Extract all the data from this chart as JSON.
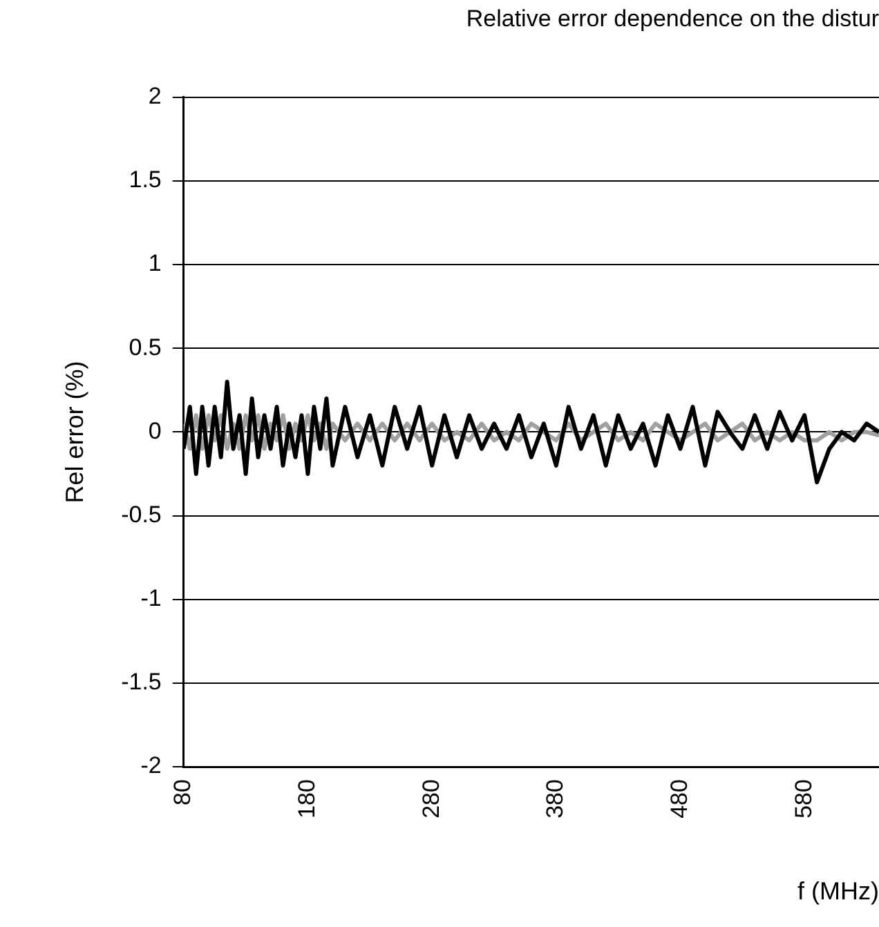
{
  "chart_data": {
    "type": "line",
    "title": "Relative error dependence on the distur",
    "xlabel": "f (MHz)",
    "ylabel": "Rel error (%)",
    "x": [
      80,
      85,
      90,
      95,
      100,
      105,
      110,
      115,
      120,
      125,
      130,
      135,
      140,
      145,
      150,
      155,
      160,
      165,
      170,
      175,
      180,
      185,
      190,
      195,
      200,
      210,
      220,
      230,
      240,
      250,
      260,
      270,
      280,
      290,
      300,
      310,
      320,
      330,
      340,
      350,
      360,
      370,
      380,
      390,
      400,
      410,
      420,
      430,
      440,
      450,
      460,
      470,
      480,
      490,
      500,
      510,
      520,
      530,
      540,
      550,
      560,
      570,
      580,
      590,
      600,
      610,
      620,
      630,
      640
    ],
    "series": [
      {
        "color": "#000000",
        "values": [
          -0.1,
          0.15,
          -0.25,
          0.15,
          -0.2,
          0.15,
          -0.15,
          0.3,
          -0.1,
          0.1,
          -0.25,
          0.2,
          -0.15,
          0.1,
          -0.1,
          0.15,
          -0.2,
          0.05,
          -0.15,
          0.1,
          -0.25,
          0.15,
          -0.1,
          0.2,
          -0.2,
          0.15,
          -0.15,
          0.1,
          -0.2,
          0.15,
          -0.1,
          0.15,
          -0.2,
          0.1,
          -0.15,
          0.1,
          -0.1,
          0.05,
          -0.1,
          0.1,
          -0.15,
          0.05,
          -0.2,
          0.15,
          -0.1,
          0.1,
          -0.2,
          0.1,
          -0.1,
          0.05,
          -0.2,
          0.1,
          -0.1,
          0.15,
          -0.2,
          0.12,
          0,
          -0.1,
          0.1,
          -0.1,
          0.12,
          -0.05,
          0.1,
          -0.3,
          -0.1,
          0,
          -0.05,
          0.05,
          0
        ]
      },
      {
        "color": "#a0a0a0",
        "values": [
          0.05,
          -0.1,
          0.1,
          -0.1,
          0.1,
          -0.05,
          0.1,
          -0.1,
          0.05,
          -0.1,
          0.1,
          -0.05,
          0.1,
          -0.1,
          0.05,
          -0.05,
          0.1,
          -0.1,
          0.05,
          -0.05,
          0.1,
          -0.05,
          0.05,
          -0.1,
          0.05,
          -0.05,
          0.05,
          -0.05,
          0.05,
          -0.05,
          0.05,
          -0.05,
          0.05,
          -0.05,
          0,
          -0.05,
          0.05,
          -0.05,
          0,
          -0.05,
          0.05,
          0,
          -0.05,
          0.05,
          -0.05,
          0,
          0.05,
          -0.05,
          0,
          -0.05,
          0.05,
          0,
          -0.05,
          0,
          0.05,
          -0.05,
          0,
          0.05,
          -0.05,
          0,
          -0.05,
          0,
          -0.05,
          -0.05,
          0,
          -0.05,
          0,
          0,
          -0.02
        ]
      }
    ],
    "xlim": [
      80,
      640
    ],
    "xticks": [
      80,
      180,
      280,
      380,
      480,
      580
    ],
    "ylim": [
      -2,
      2
    ],
    "yticks": [
      -2,
      -1.5,
      -1,
      -0.5,
      0,
      0.5,
      1,
      1.5,
      2
    ],
    "grid": "y",
    "legend": false,
    "marker": "none",
    "line_style": "solid"
  }
}
